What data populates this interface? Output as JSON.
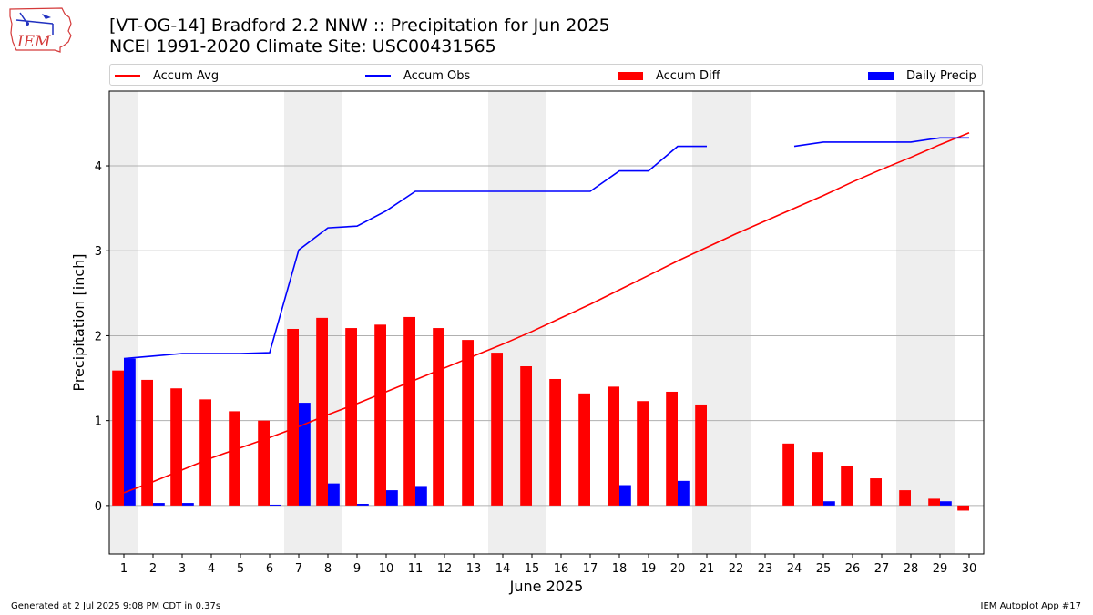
{
  "header": {
    "title": "[VT-OG-14] Bradford 2.2 NNW :: Precipitation for Jun 2025",
    "subtitle": "NCEI 1991-2020 Climate Site: USC00431565",
    "logo_text": "IEM"
  },
  "footer": {
    "left": "Generated at 2 Jul 2025 9:08 PM CDT in 0.37s",
    "right": "IEM Autoplot App #17"
  },
  "colors": {
    "avg": "#ff0000",
    "obs": "#0000ff",
    "diff": "#ff0000",
    "daily": "#0000ff",
    "weekend_shade": "#eeeeee",
    "grid": "#b0b0b0"
  },
  "chart_data": {
    "type": "bar",
    "title": "[VT-OG-14] Bradford 2.2 NNW :: Precipitation for Jun 2025",
    "subtitle": "NCEI 1991-2020 Climate Site: USC00431565",
    "xlabel": "June 2025",
    "ylabel": "Precipitation [inch]",
    "xlim": [
      0.5,
      30.5
    ],
    "ylim": [
      -0.57,
      4.88
    ],
    "yticks": [
      0,
      1,
      2,
      3,
      4
    ],
    "grid": "horizontal",
    "legend_position": "top",
    "categories": [
      1,
      2,
      3,
      4,
      5,
      6,
      7,
      8,
      9,
      10,
      11,
      12,
      13,
      14,
      15,
      16,
      17,
      18,
      19,
      20,
      21,
      22,
      23,
      24,
      25,
      26,
      27,
      28,
      29,
      30
    ],
    "shaded_days": [
      1,
      7,
      8,
      14,
      15,
      21,
      22,
      28,
      29
    ],
    "series": [
      {
        "name": "Accum Avg",
        "kind": "line",
        "values": [
          0.15,
          0.28,
          0.42,
          0.56,
          0.68,
          0.8,
          0.93,
          1.07,
          1.2,
          1.34,
          1.48,
          1.62,
          1.76,
          1.9,
          2.05,
          2.21,
          2.37,
          2.54,
          2.71,
          2.88,
          3.04,
          3.2,
          3.35,
          3.5,
          3.65,
          3.81,
          3.96,
          4.1,
          4.25,
          4.39
        ]
      },
      {
        "name": "Accum Obs",
        "kind": "line",
        "values": [
          1.73,
          1.76,
          1.79,
          1.79,
          1.79,
          1.8,
          3.01,
          3.27,
          3.29,
          3.47,
          3.7,
          3.7,
          3.7,
          3.7,
          3.7,
          3.7,
          3.7,
          3.94,
          3.94,
          4.23,
          4.23,
          null,
          null,
          4.23,
          4.28,
          4.28,
          4.28,
          4.28,
          4.33,
          4.33
        ]
      },
      {
        "name": "Accum Diff",
        "kind": "bar",
        "values": [
          1.59,
          1.48,
          1.38,
          1.25,
          1.11,
          1.0,
          2.08,
          2.21,
          2.09,
          2.13,
          2.22,
          2.09,
          1.95,
          1.8,
          1.64,
          1.49,
          1.32,
          1.4,
          1.23,
          1.34,
          1.19,
          null,
          null,
          0.73,
          0.63,
          0.47,
          0.32,
          0.18,
          0.08,
          -0.06
        ]
      },
      {
        "name": "Daily Precip",
        "kind": "bar",
        "values": [
          1.73,
          0.03,
          0.03,
          0,
          0,
          0.01,
          1.21,
          0.26,
          0.02,
          0.18,
          0.23,
          0,
          0,
          0,
          0,
          0,
          0,
          0.24,
          0,
          0.29,
          0,
          null,
          null,
          0,
          0.05,
          0,
          0,
          0,
          0.05,
          0
        ]
      }
    ]
  }
}
